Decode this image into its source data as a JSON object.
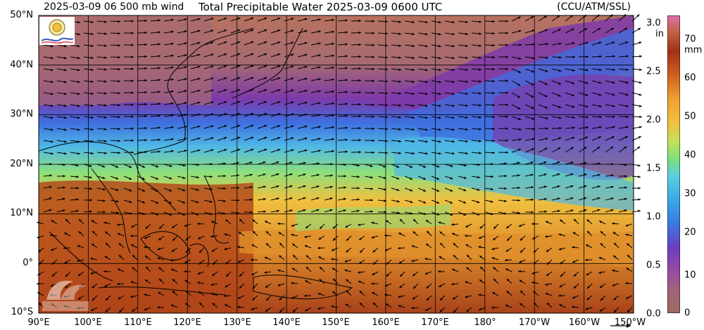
{
  "header": {
    "wind_label": "2025-03-09 06 500 mb wind",
    "title": "Total Precipitable Water  2025-03-09 0600 UTC",
    "source": "(CCU/ATM/SSL)"
  },
  "map": {
    "lon_range": [
      90,
      210
    ],
    "lat_range": [
      -10,
      50
    ],
    "lat_labels": [
      "50°N",
      "40°N",
      "30°N",
      "20°N",
      "10°N",
      "0°",
      "10°S"
    ],
    "lon_labels": [
      "90°E",
      "100°E",
      "110°E",
      "120°E",
      "130°E",
      "140°E",
      "150°E",
      "160°E",
      "170°E",
      "180°",
      "170°W",
      "160°W",
      "150°W"
    ]
  },
  "colorbar": {
    "in_ticks": [
      "3.0",
      "2.5",
      "2.0",
      "1.5",
      "1.0",
      "0.5",
      "0.0"
    ],
    "in_unit": "in",
    "mm_ticks": [
      "70",
      "60",
      "50",
      "40",
      "30",
      "20",
      "10",
      "0"
    ],
    "mm_unit": "mm",
    "colors": [
      "#9c6a5c",
      "#b0705f",
      "#a85a8c",
      "#8a3aa8",
      "#6a3fc0",
      "#3a78e0",
      "#3aa8e8",
      "#58d0e0",
      "#7fe07a",
      "#c8e058",
      "#f0c040",
      "#f0a030",
      "#d06020",
      "#b04418",
      "#a03018",
      "#c06040",
      "#e070a8"
    ]
  },
  "logos": {
    "top_left": "SSEC logo",
    "watermark": "CIMSS"
  },
  "colors": {
    "land_outline": "#000000",
    "gridline": "#000000",
    "wind_arrow": "#000000"
  }
}
